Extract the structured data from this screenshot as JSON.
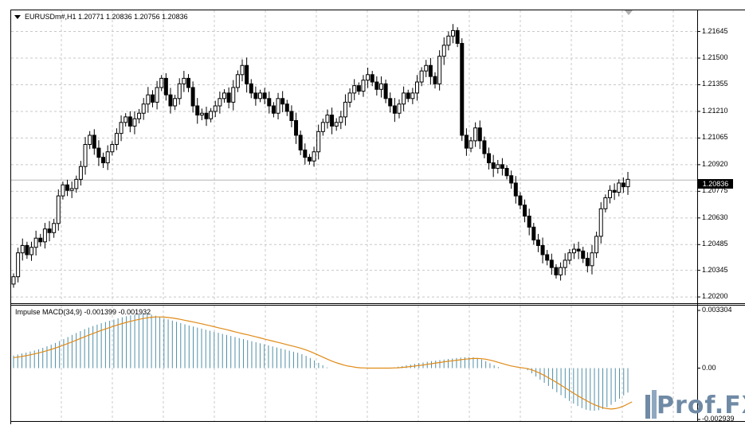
{
  "chart": {
    "header": "EURUSDm#,H1  1.20771 1.20836 1.20756 1.20836",
    "current_price_label": "1.20836",
    "price_axis_labels": [
      "1.21645",
      "1.21500",
      "1.21355",
      "1.21210",
      "1.21065",
      "1.20920",
      "1.20775",
      "1.20630",
      "1.20485",
      "1.20345",
      "1.20200"
    ]
  },
  "indicator": {
    "header": "Impulse MACD(34,9) -0.001399 -0.001932",
    "axis_labels": [
      "0.003304",
      "0.00",
      "-0.002939"
    ]
  },
  "logo": {
    "text": "Prof.FX"
  },
  "colors": {
    "bull_candle": "#ffffff",
    "bear_candle": "#000000",
    "histogram": "#4f8fa6",
    "signal_line": "#e08a16",
    "grid": "#c8c8c8"
  },
  "chart_data": [
    {
      "type": "candlestick",
      "title": "EURUSDm#,H1",
      "ylim": [
        1.2017,
        1.2176
      ],
      "grid": true,
      "last": {
        "open": 1.20771,
        "high": 1.20836,
        "low": 1.20756,
        "close": 1.20836
      },
      "closes": [
        1.2031,
        1.2044,
        1.2048,
        1.2043,
        1.2047,
        1.2052,
        1.205,
        1.2057,
        1.2055,
        1.206,
        1.2075,
        1.2081,
        1.2078,
        1.2079,
        1.2084,
        1.2091,
        1.2103,
        1.2108,
        1.2101,
        1.2096,
        1.2093,
        1.2099,
        1.2103,
        1.2109,
        1.2115,
        1.2118,
        1.2113,
        1.2117,
        1.212,
        1.2125,
        1.213,
        1.2126,
        1.2134,
        1.2139,
        1.213,
        1.2124,
        1.2128,
        1.2136,
        1.2139,
        1.2134,
        1.2124,
        1.2119,
        1.212,
        1.2117,
        1.2121,
        1.2124,
        1.2128,
        1.2131,
        1.2126,
        1.2134,
        1.2141,
        1.2146,
        1.2136,
        1.2131,
        1.2128,
        1.2131,
        1.2128,
        1.2124,
        1.212,
        1.2128,
        1.2125,
        1.2121,
        1.2116,
        1.2108,
        1.21,
        1.2096,
        1.2094,
        1.2099,
        1.211,
        1.2115,
        1.2119,
        1.2113,
        1.2115,
        1.2118,
        1.2126,
        1.2131,
        1.2135,
        1.2132,
        1.2138,
        1.2141,
        1.2137,
        1.2133,
        1.2136,
        1.2128,
        1.2124,
        1.212,
        1.2125,
        1.2131,
        1.2128,
        1.2131,
        1.2137,
        1.2143,
        1.2146,
        1.214,
        1.2136,
        1.2151,
        1.2157,
        1.2162,
        1.2165,
        1.2158,
        1.2108,
        1.2101,
        1.2105,
        1.2112,
        1.2105,
        1.2098,
        1.2093,
        1.209,
        1.2092,
        1.209,
        1.2086,
        1.2082,
        1.2075,
        1.207,
        1.2064,
        1.2058,
        1.2051,
        1.2048,
        1.2043,
        1.204,
        1.2036,
        1.2032,
        1.2036,
        1.204,
        1.2044,
        1.2046,
        1.2045,
        1.2041,
        1.2037,
        1.2044,
        1.2053,
        1.2068,
        1.2074,
        1.2078,
        1.2077,
        1.2082,
        1.208,
        1.2084
      ]
    },
    {
      "type": "bar",
      "title": "Impulse MACD(34,9)",
      "ylim": [
        -0.002939,
        0.003304
      ],
      "series": [
        {
          "name": "Impulse MACD",
          "values": [
            0.00072,
            0.00078,
            0.00084,
            0.00089,
            0.00095,
            0.00101,
            0.00108,
            0.00116,
            0.00125,
            0.00134,
            0.00144,
            0.00155,
            0.00166,
            0.00178,
            0.0019,
            0.00201,
            0.00212,
            0.00223,
            0.00232,
            0.00241,
            0.00249,
            0.00257,
            0.00264,
            0.00271,
            0.00278,
            0.00285,
            0.00291,
            0.00297,
            0.00302,
            0.00306,
            0.00309,
            0.00311,
            0.0031,
            0.00306,
            0.003,
            0.00293,
            0.00286,
            0.00279,
            0.00272,
            0.00265,
            0.00258,
            0.00251,
            0.00244,
            0.00238,
            0.00232,
            0.00226,
            0.0022,
            0.00214,
            0.00208,
            0.00202,
            0.00196,
            0.0019,
            0.00184,
            0.00178,
            0.00172,
            0.00166,
            0.0016,
            0.00154,
            0.00148,
            0.00142,
            0.00136,
            0.0013,
            0.00124,
            0.00118,
            0.00112,
            0.00106,
            0.001,
            0.00094,
            0.00088,
            0.0008,
            0.0007,
            0.00058,
            0.00044,
            0.0003,
            0.00016,
            4e-05,
            0,
            0,
            0,
            0,
            0,
            0,
            0,
            0,
            0,
            0,
            0,
            0,
            0,
            0,
            0,
            4e-05,
            8e-05,
            0.00012,
            0.00016,
            0.0002,
            0.00024,
            0.00028,
            0.00032,
            0.00036,
            0.0004,
            0.00043,
            0.00046,
            0.00049,
            0.00052,
            0.00055,
            0.00058,
            0.0006,
            0.00062,
            0.00063,
            0.00062,
            0.00058,
            0.0005,
            0.0004,
            0.00028,
            0.00016,
            6e-05,
            0,
            0,
            0,
            0,
            0,
            0,
            -0.00012,
            -0.0003,
            -0.00048,
            -0.00066,
            -0.00084,
            -0.00102,
            -0.0012,
            -0.00138,
            -0.00155,
            -0.00172,
            -0.00188,
            -0.00203,
            -0.00217,
            -0.00229,
            -0.00238,
            -0.00243,
            -0.00244,
            -0.00241,
            -0.00234,
            -0.00224,
            -0.0021,
            -0.00193,
            -0.00175,
            -0.00156,
            -0.0014
          ]
        },
        {
          "name": "Signal",
          "values": [
            0.0006,
            0.00063,
            0.00067,
            0.00071,
            0.00076,
            0.00081,
            0.00087,
            0.00093,
            0.001,
            0.00107,
            0.00115,
            0.00123,
            0.00132,
            0.00141,
            0.0015,
            0.0016,
            0.0017,
            0.00179,
            0.00189,
            0.00198,
            0.00207,
            0.00216,
            0.00224,
            0.00232,
            0.0024,
            0.00248,
            0.00255,
            0.00262,
            0.00268,
            0.00274,
            0.00279,
            0.00284,
            0.00288,
            0.00291,
            0.00293,
            0.00293,
            0.00292,
            0.0029,
            0.00287,
            0.00283,
            0.00279,
            0.00274,
            0.00269,
            0.00264,
            0.00259,
            0.00254,
            0.00248,
            0.00243,
            0.00237,
            0.00231,
            0.00226,
            0.0022,
            0.00214,
            0.00208,
            0.00202,
            0.00196,
            0.00191,
            0.00185,
            0.00179,
            0.00173,
            0.00167,
            0.00161,
            0.00155,
            0.00149,
            0.00143,
            0.00137,
            0.00131,
            0.00125,
            0.00119,
            0.00112,
            0.00104,
            0.00095,
            0.00085,
            0.00074,
            0.00063,
            0.00052,
            0.00042,
            0.00033,
            0.00025,
            0.00018,
            0.00012,
            8e-05,
            4e-05,
            2e-05,
            1e-05,
            0,
            0,
            0,
            0,
            0,
            0,
            1e-05,
            2e-05,
            4e-05,
            6e-05,
            9e-05,
            0.00012,
            0.00015,
            0.00018,
            0.00022,
            0.00025,
            0.00029,
            0.00032,
            0.00036,
            0.00039,
            0.00042,
            0.00045,
            0.00048,
            0.00051,
            0.00053,
            0.00055,
            0.00055,
            0.00054,
            0.00051,
            0.00046,
            0.0004,
            0.00033,
            0.00026,
            0.00019,
            0.00013,
            8e-05,
            4e-05,
            1e-05,
            -3e-05,
            -0.0001,
            -0.00019,
            -0.0003,
            -0.00042,
            -0.00055,
            -0.00069,
            -0.00083,
            -0.00098,
            -0.00113,
            -0.00128,
            -0.00143,
            -0.00158,
            -0.00172,
            -0.00185,
            -0.00198,
            -0.00209,
            -0.00219,
            -0.00227,
            -0.00232,
            -0.00234,
            -0.00232,
            -0.00226,
            -0.00217,
            -0.00205,
            -0.00193
          ]
        }
      ]
    }
  ]
}
